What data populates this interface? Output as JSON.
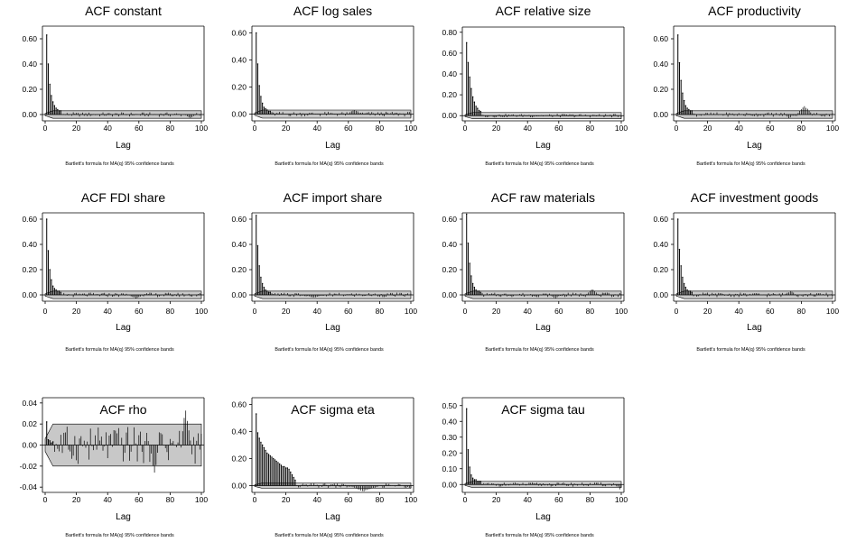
{
  "figure": {
    "note": "Bartlett's formula for MA(q) 95% confidence bands",
    "band_color": "#c8c8c8"
  },
  "chart_data": [
    {
      "type": "bar",
      "title": "ACF constant",
      "xlabel": "Lag",
      "ylabel": "",
      "xlim": [
        0,
        100
      ],
      "xticks": [
        0,
        20,
        40,
        60,
        80,
        100
      ],
      "ylim": [
        -0.05,
        0.7
      ],
      "yticks": [
        0.0,
        0.2,
        0.4,
        0.6
      ],
      "tick_decimals": 2,
      "band_upper": 0.03,
      "band_lower": -0.03,
      "lags": [
        1,
        2,
        3,
        4,
        5,
        6,
        7,
        8,
        9,
        10
      ],
      "values": [
        0.63,
        0.4,
        0.24,
        0.15,
        0.1,
        0.07,
        0.05,
        0.04,
        0.03,
        0.03
      ],
      "tail": {
        "start": 11,
        "end": 100,
        "amplitude": 0.02,
        "bumps": [
          [
            90,
            95,
            -0.03
          ]
        ]
      }
    },
    {
      "type": "bar",
      "title": "ACF log sales",
      "xlabel": "Lag",
      "ylabel": "",
      "xlim": [
        0,
        100
      ],
      "xticks": [
        0,
        20,
        40,
        60,
        80,
        100
      ],
      "ylim": [
        -0.05,
        0.65
      ],
      "yticks": [
        0.0,
        0.2,
        0.4,
        0.6
      ],
      "tick_decimals": 2,
      "band_upper": 0.03,
      "band_lower": -0.03,
      "lags": [
        1,
        2,
        3,
        4,
        5,
        6,
        7,
        8,
        9,
        10
      ],
      "values": [
        0.6,
        0.37,
        0.21,
        0.13,
        0.08,
        0.05,
        0.04,
        0.03,
        0.02,
        0.02
      ],
      "tail": {
        "start": 11,
        "end": 100,
        "amplitude": 0.02,
        "bumps": [
          [
            60,
            68,
            0.03
          ]
        ]
      }
    },
    {
      "type": "bar",
      "title": "ACF relative size",
      "xlabel": "Lag",
      "ylabel": "",
      "xlim": [
        0,
        100
      ],
      "xticks": [
        0,
        20,
        40,
        60,
        80,
        100
      ],
      "ylim": [
        -0.05,
        0.85
      ],
      "yticks": [
        0.0,
        0.2,
        0.4,
        0.6,
        0.8
      ],
      "tick_decimals": 2,
      "band_upper": 0.03,
      "band_lower": -0.03,
      "lags": [
        1,
        2,
        3,
        4,
        5,
        6,
        7,
        8,
        9,
        10
      ],
      "values": [
        0.7,
        0.51,
        0.37,
        0.26,
        0.18,
        0.13,
        0.09,
        0.07,
        0.05,
        0.04
      ],
      "tail": {
        "start": 11,
        "end": 100,
        "amplitude": 0.02,
        "bumps": []
      }
    },
    {
      "type": "bar",
      "title": "ACF productivity",
      "xlabel": "Lag",
      "ylabel": "",
      "xlim": [
        0,
        100
      ],
      "xticks": [
        0,
        20,
        40,
        60,
        80,
        100
      ],
      "ylim": [
        -0.05,
        0.7
      ],
      "yticks": [
        0.0,
        0.2,
        0.4,
        0.6
      ],
      "tick_decimals": 2,
      "band_upper": 0.03,
      "band_lower": -0.03,
      "lags": [
        1,
        2,
        3,
        4,
        5,
        6,
        7,
        8,
        9,
        10
      ],
      "values": [
        0.63,
        0.41,
        0.27,
        0.17,
        0.11,
        0.07,
        0.05,
        0.04,
        0.03,
        0.03
      ],
      "tail": {
        "start": 11,
        "end": 100,
        "amplitude": 0.02,
        "bumps": [
          [
            78,
            86,
            0.07
          ],
          [
            70,
            74,
            -0.03
          ]
        ]
      }
    },
    {
      "type": "bar",
      "title": "ACF FDI share",
      "xlabel": "Lag",
      "ylabel": "",
      "xlim": [
        0,
        100
      ],
      "xticks": [
        0,
        20,
        40,
        60,
        80,
        100
      ],
      "ylim": [
        -0.05,
        0.65
      ],
      "yticks": [
        0.0,
        0.2,
        0.4,
        0.6
      ],
      "tick_decimals": 2,
      "band_upper": 0.03,
      "band_lower": -0.03,
      "lags": [
        1,
        2,
        3,
        4,
        5,
        6,
        7,
        8,
        9,
        10
      ],
      "values": [
        0.6,
        0.35,
        0.2,
        0.12,
        0.07,
        0.05,
        0.04,
        0.03,
        0.03,
        0.02
      ],
      "tail": {
        "start": 11,
        "end": 100,
        "amplitude": 0.02,
        "bumps": [
          [
            55,
            62,
            -0.03
          ]
        ]
      }
    },
    {
      "type": "bar",
      "title": "ACF import share",
      "xlabel": "Lag",
      "ylabel": "",
      "xlim": [
        0,
        100
      ],
      "xticks": [
        0,
        20,
        40,
        60,
        80,
        100
      ],
      "ylim": [
        -0.05,
        0.65
      ],
      "yticks": [
        0.0,
        0.2,
        0.4,
        0.6
      ],
      "tick_decimals": 2,
      "band_upper": 0.03,
      "band_lower": -0.03,
      "lags": [
        1,
        2,
        3,
        4,
        5,
        6,
        7,
        8,
        9,
        10
      ],
      "values": [
        0.63,
        0.39,
        0.23,
        0.14,
        0.09,
        0.06,
        0.04,
        0.03,
        0.02,
        0.02
      ],
      "tail": {
        "start": 11,
        "end": 100,
        "amplitude": 0.02,
        "bumps": [
          [
            30,
            45,
            -0.02
          ]
        ]
      }
    },
    {
      "type": "bar",
      "title": "ACF raw materials",
      "xlabel": "Lag",
      "ylabel": "",
      "xlim": [
        0,
        100
      ],
      "xticks": [
        0,
        20,
        40,
        60,
        80,
        100
      ],
      "ylim": [
        -0.05,
        0.65
      ],
      "yticks": [
        0.0,
        0.2,
        0.4,
        0.6
      ],
      "tick_decimals": 2,
      "band_upper": 0.03,
      "band_lower": -0.03,
      "lags": [
        1,
        2,
        3,
        4,
        5,
        6,
        7,
        8,
        9,
        10
      ],
      "values": [
        0.64,
        0.41,
        0.25,
        0.15,
        0.09,
        0.06,
        0.04,
        0.03,
        0.03,
        0.02
      ],
      "tail": {
        "start": 11,
        "end": 100,
        "amplitude": 0.02,
        "bumps": [
          [
            78,
            85,
            0.05
          ],
          [
            55,
            60,
            -0.03
          ]
        ]
      }
    },
    {
      "type": "bar",
      "title": "ACF investment goods",
      "xlabel": "Lag",
      "ylabel": "",
      "xlim": [
        0,
        100
      ],
      "xticks": [
        0,
        20,
        40,
        60,
        80,
        100
      ],
      "ylim": [
        -0.05,
        0.65
      ],
      "yticks": [
        0.0,
        0.2,
        0.4,
        0.6
      ],
      "tick_decimals": 2,
      "band_upper": 0.03,
      "band_lower": -0.03,
      "lags": [
        1,
        2,
        3,
        4,
        5,
        6,
        7,
        8,
        9,
        10
      ],
      "values": [
        0.6,
        0.36,
        0.23,
        0.14,
        0.09,
        0.06,
        0.04,
        0.03,
        0.03,
        0.02
      ],
      "tail": {
        "start": 11,
        "end": 100,
        "amplitude": 0.02,
        "bumps": [
          [
            70,
            76,
            0.03
          ]
        ]
      }
    },
    {
      "type": "bar",
      "title": "ACF rho",
      "xlabel": "Lag",
      "ylabel": "",
      "xlim": [
        0,
        100
      ],
      "xticks": [
        0,
        20,
        40,
        60,
        80,
        100
      ],
      "ylim": [
        -0.045,
        0.045
      ],
      "yticks": [
        -0.04,
        -0.02,
        0.0,
        0.02,
        0.04
      ],
      "tick_decimals": 2,
      "band_upper": 0.02,
      "band_lower": -0.02,
      "lags": [
        1,
        2,
        3,
        4,
        5
      ],
      "values": [
        0.022,
        0.005,
        0.004,
        0.002,
        0.003
      ],
      "tail": {
        "start": 6,
        "end": 100,
        "amplitude": 0.02,
        "bumps": [
          [
            88,
            92,
            0.033
          ],
          [
            68,
            72,
            -0.028
          ]
        ]
      }
    },
    {
      "type": "bar",
      "title": "ACF sigma eta",
      "xlabel": "Lag",
      "ylabel": "",
      "xlim": [
        0,
        100
      ],
      "xticks": [
        0,
        20,
        40,
        60,
        80,
        100
      ],
      "ylim": [
        -0.05,
        0.65
      ],
      "yticks": [
        0.0,
        0.2,
        0.4,
        0.6
      ],
      "tick_decimals": 2,
      "band_upper": 0.02,
      "band_lower": -0.02,
      "lags": [
        1,
        2,
        3,
        4,
        5,
        6,
        7,
        8,
        9,
        10,
        11,
        12,
        13,
        14,
        15,
        16,
        17,
        18,
        19,
        20,
        21,
        22,
        23,
        24,
        25,
        26
      ],
      "values": [
        0.53,
        0.39,
        0.35,
        0.32,
        0.3,
        0.28,
        0.26,
        0.24,
        0.23,
        0.22,
        0.21,
        0.2,
        0.19,
        0.18,
        0.17,
        0.16,
        0.15,
        0.14,
        0.14,
        0.13,
        0.13,
        0.12,
        0.1,
        0.08,
        0.06,
        0.04
      ],
      "tail": {
        "start": 27,
        "end": 100,
        "amplitude": 0.02,
        "bumps": [
          [
            60,
            80,
            -0.04
          ]
        ]
      }
    },
    {
      "type": "bar",
      "title": "ACF sigma tau",
      "xlabel": "Lag",
      "ylabel": "",
      "xlim": [
        0,
        100
      ],
      "xticks": [
        0,
        20,
        40,
        60,
        80,
        100
      ],
      "ylim": [
        -0.05,
        0.55
      ],
      "yticks": [
        0.0,
        0.1,
        0.2,
        0.3,
        0.4,
        0.5
      ],
      "tick_decimals": 2,
      "band_upper": 0.02,
      "band_lower": -0.02,
      "lags": [
        1,
        2,
        3,
        4,
        5,
        6,
        7,
        8,
        9,
        10
      ],
      "values": [
        0.48,
        0.22,
        0.11,
        0.06,
        0.04,
        0.03,
        0.03,
        0.02,
        0.02,
        0.02
      ],
      "tail": {
        "start": 11,
        "end": 100,
        "amplitude": 0.015,
        "bumps": [
          [
            98,
            100,
            -0.03
          ]
        ]
      }
    }
  ]
}
